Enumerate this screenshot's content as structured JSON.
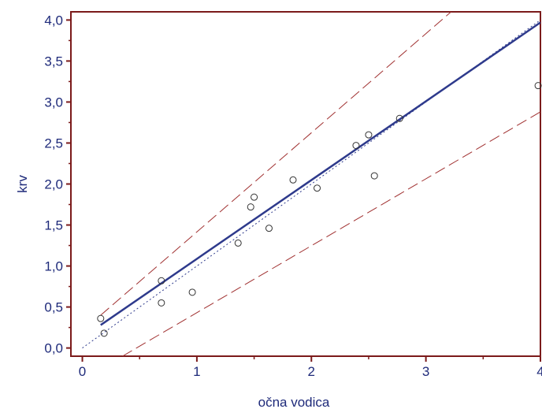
{
  "chart_data": {
    "type": "scatter",
    "title": "",
    "xlabel": "očna vodica",
    "ylabel": "krv",
    "xlim": [
      -0.1,
      4.0
    ],
    "ylim": [
      -0.1,
      4.1
    ],
    "x_ticks": [
      0,
      1,
      2,
      3,
      4
    ],
    "x_tick_labels": [
      "0",
      "1",
      "2",
      "3",
      "4"
    ],
    "y_ticks": [
      0.0,
      0.5,
      1.0,
      1.5,
      2.0,
      2.5,
      3.0,
      3.5,
      4.0
    ],
    "y_tick_labels": [
      "0,0",
      "0,5",
      "1,0",
      "1,5",
      "2,0",
      "2,5",
      "3,0",
      "3,5",
      "4,0"
    ],
    "grid": false,
    "points": {
      "x": [
        0.16,
        0.19,
        0.69,
        0.69,
        0.96,
        1.36,
        1.47,
        1.5,
        1.63,
        1.84,
        2.05,
        2.39,
        2.5,
        2.55,
        2.77,
        3.98
      ],
      "y": [
        0.36,
        0.18,
        0.82,
        0.55,
        0.68,
        1.28,
        1.72,
        1.84,
        1.46,
        2.05,
        1.95,
        2.47,
        2.6,
        2.1,
        2.8,
        3.2
      ]
    },
    "lines": [
      {
        "kind": "regression",
        "style": "solid",
        "color": "#2e3a8c",
        "x": [
          0.16,
          4.0
        ],
        "y": [
          0.28,
          3.97
        ]
      },
      {
        "kind": "identity",
        "style": "dotted",
        "color": "#2e3a8c",
        "x": [
          0.0,
          4.0
        ],
        "y": [
          0.0,
          4.0
        ]
      },
      {
        "kind": "upper-limit",
        "style": "dashed",
        "color": "#a03030",
        "x": [
          0.16,
          3.22
        ],
        "y": [
          0.4,
          4.1
        ]
      },
      {
        "kind": "lower-limit",
        "style": "dashed",
        "color": "#a03030",
        "x": [
          0.35,
          4.0
        ],
        "y": [
          -0.1,
          2.88
        ]
      }
    ],
    "colors": {
      "axis": "#7b1a1a",
      "text": "#1e2a7a",
      "points": "#333333"
    }
  }
}
